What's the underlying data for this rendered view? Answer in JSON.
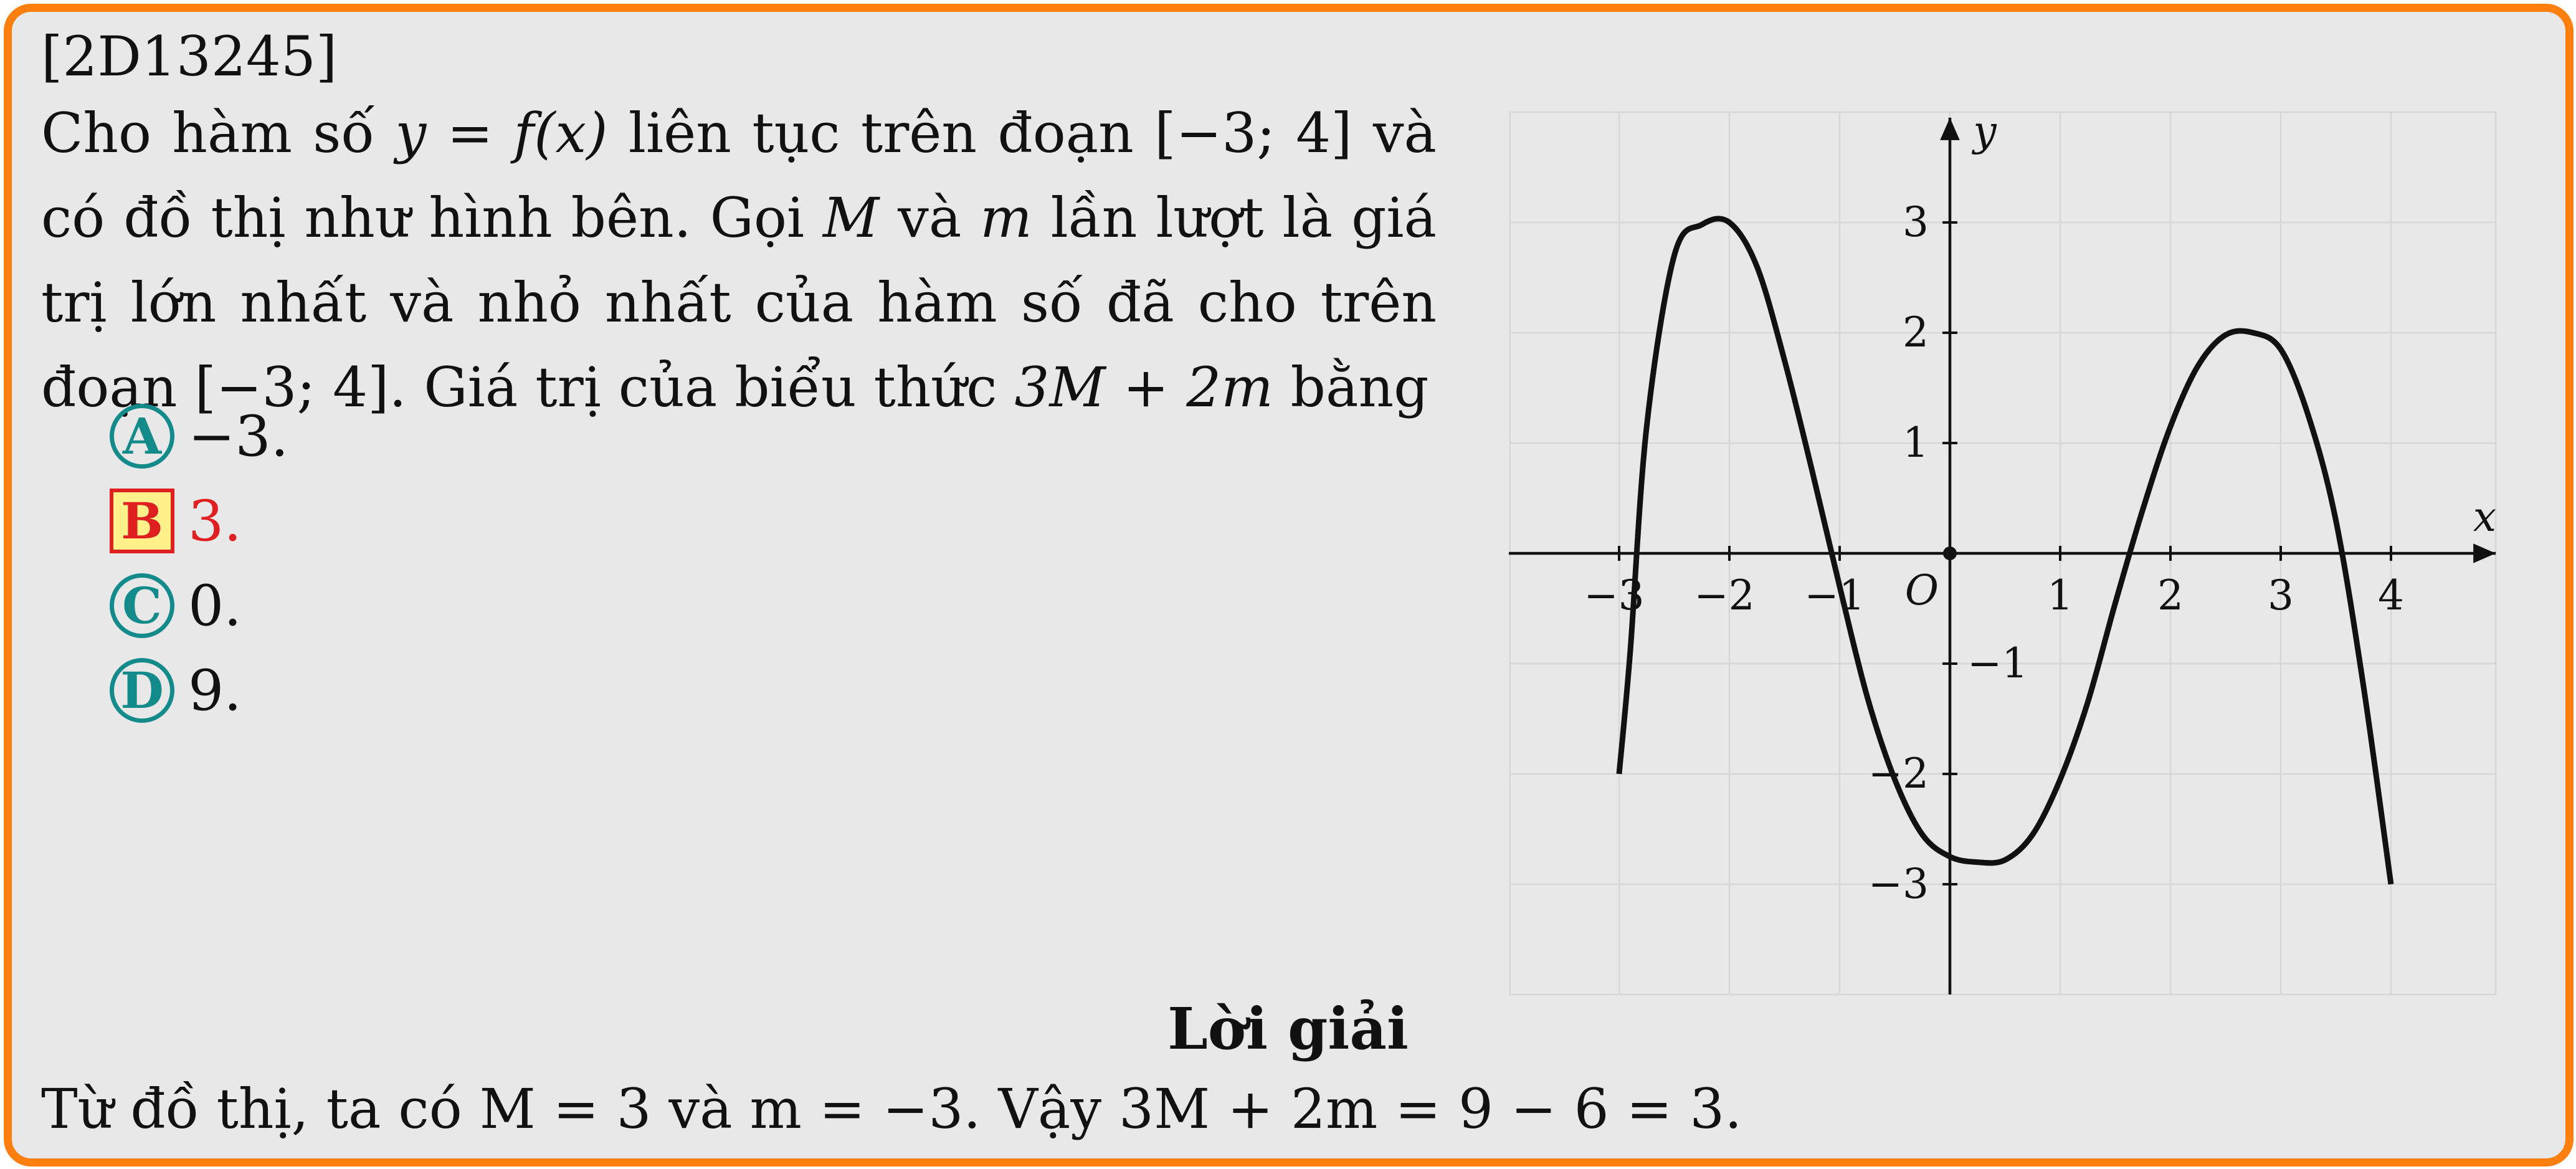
{
  "problem": {
    "code": "[2D13245]",
    "stem": [
      {
        "t": "Cho hàm số "
      },
      {
        "m": "y = f(x)"
      },
      {
        "t": " liên tục trên đoạn "
      },
      {
        "t": "[−3; 4]"
      },
      {
        "t": " và có đồ thị như hình bên. Gọi "
      },
      {
        "m": "M"
      },
      {
        "t": " và "
      },
      {
        "m": "m"
      },
      {
        "t": " lần lượt là giá trị lớn nhất và nhỏ nhất của hàm số đã cho trên đoạn "
      },
      {
        "t": "[−3; 4]"
      },
      {
        "t": ". Giá trị của biểu thức "
      },
      {
        "m": "3M + 2m"
      },
      {
        "t": " bằng"
      }
    ],
    "choices": [
      {
        "letter": "A",
        "text": "−3.",
        "correct": false
      },
      {
        "letter": "B",
        "text": "3.",
        "correct": true
      },
      {
        "letter": "C",
        "text": "0.",
        "correct": false
      },
      {
        "letter": "D",
        "text": "9.",
        "correct": false
      }
    ]
  },
  "solution": {
    "title": "Lời giải",
    "text": "Từ đồ thị, ta có M = 3 và m = −3. Vậy 3M + 2m = 9 − 6 = 3."
  },
  "colors": {
    "border": "#ff7f0e",
    "background": "#e8e8e8",
    "badge": "#138b8b",
    "correct": "#e02020",
    "correct_fill": "#fff08a",
    "grid": "#d6d6d6"
  },
  "chart_data": {
    "type": "line",
    "x_axis_label": "x",
    "y_axis_label": "y",
    "origin_label": "O",
    "xlim": [
      -4,
      5
    ],
    "ylim": [
      -4,
      4
    ],
    "x_ticks": [
      -3,
      -2,
      -1,
      1,
      2,
      3,
      4
    ],
    "y_ticks": [
      -3,
      -2,
      -1,
      1,
      2,
      3
    ],
    "x_tick_labels": [
      "−3",
      "−2",
      "−1",
      "1",
      "2",
      "3",
      "4"
    ],
    "y_tick_labels": [
      "−3",
      "−2",
      "−1",
      "1",
      "2",
      "3"
    ],
    "grid": true,
    "series": [
      {
        "x": [
          -3,
          -2.9,
          -2.75,
          -2.5,
          -2.25,
          -2,
          -1.75,
          -1.5,
          -1.25,
          -1,
          -0.75,
          -0.5,
          -0.25,
          0,
          0.25,
          0.5,
          0.75,
          1,
          1.25,
          1.5,
          1.75,
          2,
          2.25,
          2.5,
          2.75,
          3,
          3.25,
          3.5,
          3.75,
          4
        ],
        "y": [
          -2,
          -0.9,
          1.15,
          2.7,
          2.98,
          3,
          2.6,
          1.75,
          0.75,
          -0.3,
          -1.3,
          -2.05,
          -2.55,
          -2.75,
          -2.8,
          -2.78,
          -2.55,
          -2.05,
          -1.35,
          -0.45,
          0.4,
          1.15,
          1.7,
          1.98,
          2.0,
          1.85,
          1.25,
          0.3,
          -1.2,
          -3
        ]
      }
    ]
  }
}
